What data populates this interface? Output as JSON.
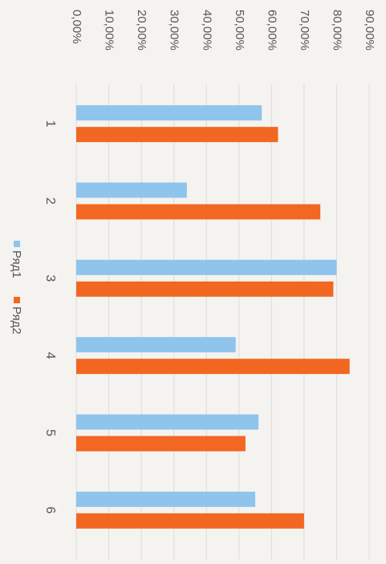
{
  "chart_data": {
    "type": "bar",
    "orientation": "rotated-90-clockwise",
    "categories": [
      "1",
      "2",
      "3",
      "4",
      "5",
      "6"
    ],
    "series": [
      {
        "name": "Ряд1",
        "values": [
          0.57,
          0.34,
          0.8,
          0.49,
          0.56,
          0.55
        ]
      },
      {
        "name": "Ряд2",
        "values": [
          0.62,
          0.75,
          0.79,
          0.84,
          0.52,
          0.7
        ]
      }
    ],
    "ylim": [
      0,
      0.9
    ],
    "yticks": [
      "0,00%",
      "10,00%",
      "20,00%",
      "30,00%",
      "40,00%",
      "50,00%",
      "60,00%",
      "70,00%",
      "80,00%",
      "90,00%"
    ],
    "grid": true,
    "legend_position": "bottom",
    "colors": {
      "series1": "#8fc4ec",
      "series2": "#f26722",
      "grid": "#dcdcdc",
      "text": "#555555"
    }
  }
}
